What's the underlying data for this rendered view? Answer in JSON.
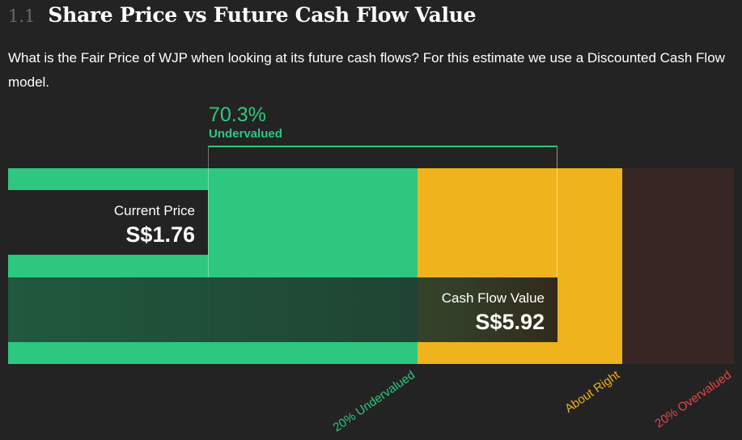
{
  "header": {
    "section_number": "1.1",
    "title": "Share Price vs Future Cash Flow Value",
    "description": "What is the Fair Price of WJP when looking at its future cash flows? For this estimate we use a Discounted Cash Flow model."
  },
  "chart_data": {
    "type": "bar",
    "title": "Share Price vs Future Cash Flow Value",
    "currency": "S$",
    "current_price": {
      "label": "Current Price",
      "value": 1.76,
      "display": "S$1.76"
    },
    "cash_flow_value": {
      "label": "Cash Flow Value",
      "value": 5.92,
      "display": "S$5.92"
    },
    "discount": {
      "percent_display": "70.3%",
      "status": "Undervalued"
    },
    "zones": [
      {
        "label": "20% Undervalued",
        "from": 0,
        "to": 4.736,
        "color": "#2ec780"
      },
      {
        "label": "About Right",
        "from": 4.736,
        "to": 7.104,
        "color": "#efb31b"
      },
      {
        "label": "20% Overvalued",
        "from": 7.104,
        "to": 8.4,
        "color": "#e64848",
        "fill": "#372624"
      }
    ],
    "xlim": [
      0,
      8.4
    ]
  },
  "colors": {
    "background": "#232323",
    "green": "#2ec780",
    "yellow": "#efb31b",
    "red": "#e64848"
  }
}
